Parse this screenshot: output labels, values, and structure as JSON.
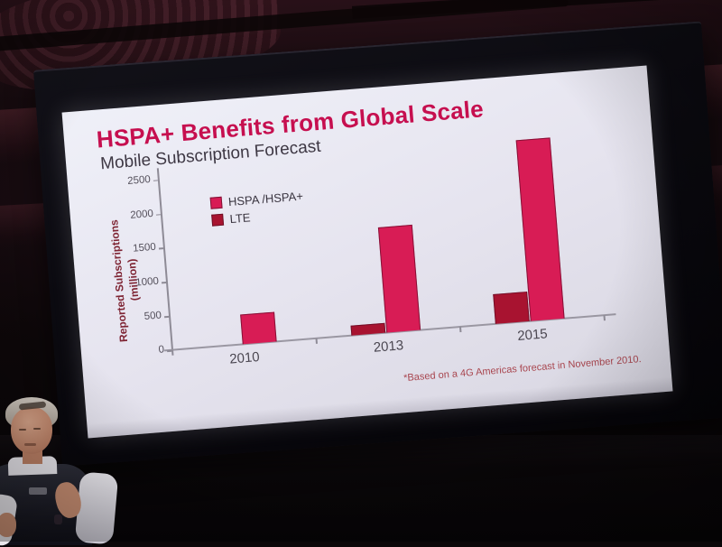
{
  "scene": {
    "room_wall_color": "#2a1119",
    "stage_color": "#0a0709",
    "screen_bezel_color": "#0b0a10",
    "screen_white": "#e6e4ef"
  },
  "slide": {
    "title": "HSPA+ Benefits from Global Scale",
    "subtitle": "Mobile Subscription Forecast",
    "title_color": "#c60f4f",
    "subtitle_color": "#3e3844"
  },
  "chart_data": {
    "type": "bar",
    "title": "Mobile Subscription Forecast",
    "categories": [
      "2010",
      "2013",
      "2015"
    ],
    "series": [
      {
        "name": "HSPA /HSPA+",
        "color": "#d81c55",
        "values": [
          430,
          1550,
          2650
        ]
      },
      {
        "name": "LTE",
        "color": "#a81330",
        "values": [
          0,
          150,
          430
        ]
      }
    ],
    "bar_draw_order": [
      "LTE",
      "HSPA /HSPA+"
    ],
    "ylabel": "Reported Subscriptions (million)",
    "ylabel_lines": [
      "Reported Subscriptions",
      "(million)"
    ],
    "yticks": [
      0,
      500,
      1000,
      1500,
      2000,
      2500
    ],
    "ylim": [
      0,
      2800
    ],
    "units": "million",
    "grid": false,
    "legend_position": "top-left-inside",
    "footnote": "*Based on a 4G Americas forecast in November 2010."
  }
}
